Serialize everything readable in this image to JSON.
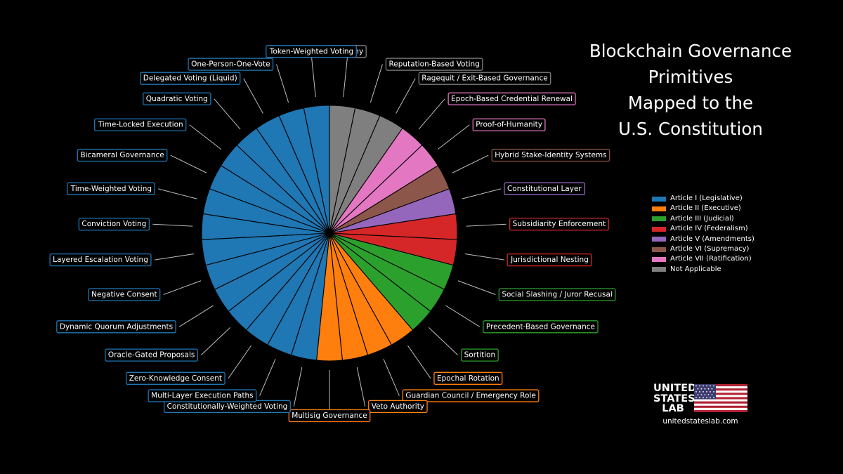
{
  "chart_data": {
    "type": "pie",
    "title": "Blockchain Governance Primitives Mapped to the U.S. Constitution",
    "categories": [
      {
        "name": "Article I (Legislative)",
        "color": "#1f77b4"
      },
      {
        "name": "Article II (Executive)",
        "color": "#ff7f0e"
      },
      {
        "name": "Article III (Judicial)",
        "color": "#2ca02c"
      },
      {
        "name": "Article IV (Federalism)",
        "color": "#d62728"
      },
      {
        "name": "Article V (Amendments)",
        "color": "#9467bd"
      },
      {
        "name": "Article VI (Supremacy)",
        "color": "#8c564b"
      },
      {
        "name": "Article VII (Ratification)",
        "color": "#e377c2"
      },
      {
        "name": "Not Applicable",
        "color": "#7f7f7f"
      }
    ],
    "slices": [
      {
        "label": "Futarchy",
        "category": "Not Applicable",
        "value": 1
      },
      {
        "label": "Reputation-Based Voting",
        "category": "Not Applicable",
        "value": 1
      },
      {
        "label": "Ragequit / Exit-Based Governance",
        "category": "Not Applicable",
        "value": 1
      },
      {
        "label": "Epoch-Based Credential Renewal",
        "category": "Article VII (Ratification)",
        "value": 1
      },
      {
        "label": "Proof-of-Humanity",
        "category": "Article VII (Ratification)",
        "value": 1
      },
      {
        "label": "Hybrid Stake-Identity Systems",
        "category": "Article VI (Supremacy)",
        "value": 1
      },
      {
        "label": "Constitutional Layer",
        "category": "Article V (Amendments)",
        "value": 1
      },
      {
        "label": "Subsidiarity Enforcement",
        "category": "Article IV (Federalism)",
        "value": 1
      },
      {
        "label": "Jurisdictional Nesting",
        "category": "Article IV (Federalism)",
        "value": 1
      },
      {
        "label": "Social Slashing / Juror Recusal",
        "category": "Article III (Judicial)",
        "value": 1
      },
      {
        "label": "Precedent-Based Governance",
        "category": "Article III (Judicial)",
        "value": 1
      },
      {
        "label": "Sortition",
        "category": "Article III (Judicial)",
        "value": 1
      },
      {
        "label": "Epochal Rotation",
        "category": "Article II (Executive)",
        "value": 1
      },
      {
        "label": "Guardian Council / Emergency Role",
        "category": "Article II (Executive)",
        "value": 1
      },
      {
        "label": "Veto Authority",
        "category": "Article II (Executive)",
        "value": 1
      },
      {
        "label": "Multisig Governance",
        "category": "Article II (Executive)",
        "value": 1
      },
      {
        "label": "Constitutionally-Weighted Voting",
        "category": "Article I (Legislative)",
        "value": 1
      },
      {
        "label": "Multi-Layer Execution Paths",
        "category": "Article I (Legislative)",
        "value": 1
      },
      {
        "label": "Zero-Knowledge Consent",
        "category": "Article I (Legislative)",
        "value": 1
      },
      {
        "label": "Oracle-Gated Proposals",
        "category": "Article I (Legislative)",
        "value": 1
      },
      {
        "label": "Dynamic Quorum Adjustments",
        "category": "Article I (Legislative)",
        "value": 1
      },
      {
        "label": "Negative Consent",
        "category": "Article I (Legislative)",
        "value": 1
      },
      {
        "label": "Layered Escalation Voting",
        "category": "Article I (Legislative)",
        "value": 1
      },
      {
        "label": "Conviction Voting",
        "category": "Article I (Legislative)",
        "value": 1
      },
      {
        "label": "Time-Weighted Voting",
        "category": "Article I (Legislative)",
        "value": 1
      },
      {
        "label": "Bicameral Governance",
        "category": "Article I (Legislative)",
        "value": 1
      },
      {
        "label": "Time-Locked Execution",
        "category": "Article I (Legislative)",
        "value": 1
      },
      {
        "label": "Quadratic Voting",
        "category": "Article I (Legislative)",
        "value": 1
      },
      {
        "label": "Delegated Voting (Liquid)",
        "category": "Article I (Legislative)",
        "value": 1
      },
      {
        "label": "One-Person-One-Vote",
        "category": "Article I (Legislative)",
        "value": 1
      },
      {
        "label": "Token-Weighted Voting",
        "category": "Article I (Legislative)",
        "value": 1
      }
    ],
    "start_angle": "12 o'clock",
    "direction": "clockwise",
    "legend_position": "right"
  },
  "title_lines": [
    "Blockchain Governance",
    "Primitives",
    "Mapped to the",
    "U.S. Constitution"
  ],
  "brand": {
    "name_lines": [
      "UNITED",
      "STATES",
      "LAB"
    ],
    "url": "unitedstateslab.com",
    "icon": "us-flag-icon"
  }
}
